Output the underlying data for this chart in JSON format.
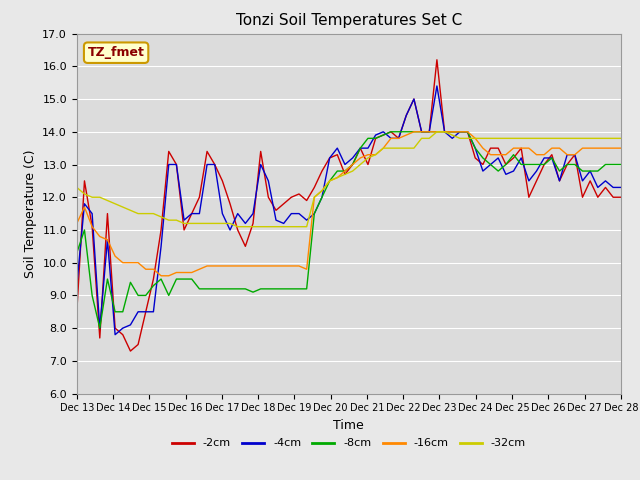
{
  "title": "Tonzi Soil Temperatures Set C",
  "xlabel": "Time",
  "ylabel": "Soil Temperature (C)",
  "ylim": [
    6.0,
    17.0
  ],
  "yticks": [
    6.0,
    7.0,
    8.0,
    9.0,
    10.0,
    11.0,
    12.0,
    13.0,
    14.0,
    15.0,
    16.0,
    17.0
  ],
  "bg_color": "#e8e8e8",
  "plot_bg_color": "#dcdcdc",
  "legend_label": "TZ_fmet",
  "legend_bg": "#ffffcc",
  "legend_border": "#cc9900",
  "series_colors": {
    "-2cm": "#cc0000",
    "-4cm": "#0000cc",
    "-8cm": "#00aa00",
    "-16cm": "#ff8800",
    "-32cm": "#cccc00"
  },
  "xtick_labels": [
    "Dec 13",
    "Dec 14",
    "Dec 15",
    "Dec 16",
    "Dec 17",
    "Dec 18",
    "Dec 19",
    "Dec 20",
    "Dec 21",
    "Dec 22",
    "Dec 23",
    "Dec 24",
    "Dec 25",
    "Dec 26",
    "Dec 27",
    "Dec 28"
  ],
  "data": {
    "-2cm": [
      8.5,
      12.5,
      11.1,
      7.7,
      11.5,
      8.0,
      7.8,
      7.3,
      7.5,
      8.5,
      9.5,
      11.0,
      13.4,
      13.0,
      11.0,
      11.5,
      12.0,
      13.4,
      13.0,
      12.5,
      11.8,
      11.0,
      10.5,
      11.2,
      13.4,
      12.0,
      11.6,
      11.8,
      12.0,
      12.1,
      11.9,
      12.3,
      12.8,
      13.2,
      13.3,
      12.7,
      13.0,
      13.5,
      13.0,
      13.8,
      13.9,
      14.0,
      13.8,
      14.5,
      15.0,
      14.0,
      14.0,
      16.2,
      14.0,
      14.0,
      14.0,
      14.0,
      13.2,
      13.0,
      13.5,
      13.5,
      13.0,
      13.2,
      13.5,
      12.0,
      12.5,
      13.0,
      13.3,
      12.5,
      13.0,
      13.3,
      12.0,
      12.5,
      12.0,
      12.3,
      12.0,
      12.0
    ],
    "-4cm": [
      9.3,
      11.8,
      11.5,
      8.0,
      10.7,
      7.8,
      8.0,
      8.1,
      8.5,
      8.5,
      8.5,
      10.5,
      13.0,
      13.0,
      11.3,
      11.5,
      11.5,
      13.0,
      13.0,
      11.5,
      11.0,
      11.5,
      11.2,
      11.5,
      13.0,
      12.5,
      11.3,
      11.2,
      11.5,
      11.5,
      11.3,
      11.5,
      12.0,
      13.2,
      13.5,
      13.0,
      13.2,
      13.5,
      13.5,
      13.9,
      14.0,
      13.8,
      13.8,
      14.5,
      15.0,
      14.0,
      14.0,
      15.4,
      14.0,
      13.8,
      14.0,
      14.0,
      13.5,
      12.8,
      13.0,
      13.2,
      12.7,
      12.8,
      13.2,
      12.5,
      12.8,
      13.2,
      13.2,
      12.5,
      13.3,
      13.3,
      12.5,
      12.8,
      12.3,
      12.5,
      12.3,
      12.3
    ],
    "-8cm": [
      10.3,
      11.0,
      9.0,
      8.0,
      9.5,
      8.5,
      8.5,
      9.4,
      9.0,
      9.0,
      9.3,
      9.5,
      9.0,
      9.5,
      9.5,
      9.5,
      9.2,
      9.2,
      9.2,
      9.2,
      9.2,
      9.2,
      9.2,
      9.1,
      9.2,
      9.2,
      9.2,
      9.2,
      9.2,
      9.2,
      9.2,
      11.5,
      12.0,
      12.5,
      12.8,
      12.8,
      13.0,
      13.5,
      13.8,
      13.8,
      13.9,
      14.0,
      14.0,
      14.0,
      14.0,
      14.0,
      14.0,
      14.0,
      14.0,
      14.0,
      14.0,
      14.0,
      13.5,
      13.2,
      13.0,
      12.8,
      13.0,
      13.3,
      13.0,
      13.0,
      13.0,
      13.0,
      13.2,
      12.8,
      13.0,
      13.0,
      12.8,
      12.8,
      12.8,
      13.0,
      13.0,
      13.0
    ],
    "-16cm": [
      11.2,
      11.7,
      11.1,
      10.8,
      10.7,
      10.2,
      10.0,
      10.0,
      10.0,
      9.8,
      9.8,
      9.6,
      9.6,
      9.7,
      9.7,
      9.7,
      9.8,
      9.9,
      9.9,
      9.9,
      9.9,
      9.9,
      9.9,
      9.9,
      9.9,
      9.9,
      9.9,
      9.9,
      9.9,
      9.9,
      9.8,
      12.0,
      12.2,
      12.5,
      12.6,
      12.8,
      13.0,
      13.2,
      13.3,
      13.3,
      13.5,
      13.8,
      13.8,
      13.9,
      14.0,
      14.0,
      14.0,
      14.0,
      14.0,
      14.0,
      14.0,
      14.0,
      13.8,
      13.5,
      13.3,
      13.3,
      13.3,
      13.5,
      13.5,
      13.5,
      13.3,
      13.3,
      13.5,
      13.5,
      13.3,
      13.3,
      13.5,
      13.5,
      13.5,
      13.5,
      13.5,
      13.5
    ],
    "-32cm": [
      12.3,
      12.1,
      12.0,
      12.0,
      11.9,
      11.8,
      11.7,
      11.6,
      11.5,
      11.5,
      11.5,
      11.4,
      11.3,
      11.3,
      11.2,
      11.2,
      11.2,
      11.2,
      11.2,
      11.2,
      11.2,
      11.1,
      11.1,
      11.1,
      11.1,
      11.1,
      11.1,
      11.1,
      11.1,
      11.1,
      11.1,
      12.0,
      12.2,
      12.5,
      12.6,
      12.7,
      12.8,
      13.0,
      13.2,
      13.3,
      13.5,
      13.5,
      13.5,
      13.5,
      13.5,
      13.8,
      13.8,
      14.0,
      14.0,
      13.9,
      13.8,
      13.8,
      13.8,
      13.8,
      13.8,
      13.8,
      13.8,
      13.8,
      13.8,
      13.8,
      13.8,
      13.8,
      13.8,
      13.8,
      13.8,
      13.8,
      13.8,
      13.8,
      13.8,
      13.8,
      13.8,
      13.8
    ]
  }
}
